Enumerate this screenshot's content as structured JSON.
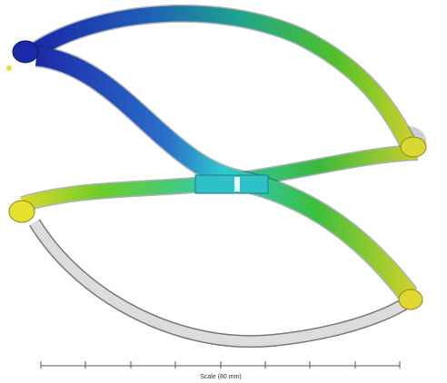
{
  "scale_bar": {
    "label": "Scale (80 mm)"
  }
}
